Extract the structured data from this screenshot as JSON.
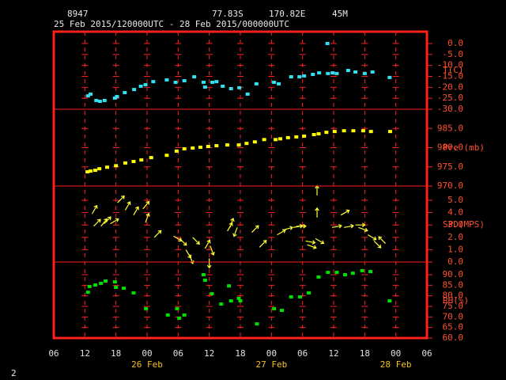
{
  "header": {
    "station": "8947",
    "lat": "77.83S",
    "lon": "170.82E",
    "elev": "45M",
    "period": "25 Feb 2015/120000UTC - 28 Feb 2015/000000UTC",
    "page": "2"
  },
  "x_axis": {
    "xlim": [
      0,
      72
    ],
    "xticks": [
      {
        "value": 0,
        "label": "06"
      },
      {
        "value": 6,
        "label": "12"
      },
      {
        "value": 12,
        "label": "18"
      },
      {
        "value": 18,
        "label": "00"
      },
      {
        "value": 24,
        "label": "06"
      },
      {
        "value": 30,
        "label": "12"
      },
      {
        "value": 36,
        "label": "18"
      },
      {
        "value": 42,
        "label": "00"
      },
      {
        "value": 48,
        "label": "06"
      },
      {
        "value": 54,
        "label": "12"
      },
      {
        "value": 60,
        "label": "18"
      },
      {
        "value": 66,
        "label": "00"
      },
      {
        "value": 72,
        "label": "06"
      }
    ],
    "date_ticks": [
      {
        "value": 18,
        "label": "26 Feb"
      },
      {
        "value": 42,
        "label": "27 Feb"
      },
      {
        "value": 66,
        "label": "28 Feb"
      }
    ]
  },
  "chart_data": [
    {
      "type": "scatter",
      "label": "T(C)",
      "ylim": [
        -30,
        5.4
      ],
      "yticks": [
        {
          "value": 0,
          "label": "0.0"
        },
        {
          "value": -5,
          "label": "-5.0"
        },
        {
          "value": -10,
          "label": "-10.0"
        },
        {
          "value": -15,
          "label": "-15.0"
        },
        {
          "value": -20,
          "label": "-20.0"
        },
        {
          "value": -25,
          "label": "-25.0"
        },
        {
          "value": -30,
          "label": "-30.0"
        }
      ],
      "series": [
        {
          "color": "#33e0f0",
          "x": [
            6.6,
            7.1,
            8.2,
            8.9,
            9.8,
            11.8,
            12.2,
            13.7,
            15.5,
            16.8,
            17.7,
            19.2,
            21.8,
            23.5,
            25.2,
            27.1,
            28.9,
            29.2,
            30.6,
            31.4,
            32.6,
            34.2,
            35.8,
            37.4,
            39.1,
            42.5,
            43.4,
            45.8,
            47.4,
            48.3,
            50.0,
            51.2,
            52.8,
            52.9,
            53.8,
            54.6,
            56.8,
            58.2,
            60.0,
            61.5,
            64.8
          ],
          "values": [
            -23.9,
            -23.1,
            -26.0,
            -26.4,
            -26.0,
            -24.9,
            -24.2,
            -22.4,
            -21.0,
            -19.5,
            -18.8,
            -17.4,
            -16.6,
            -17.7,
            -17.0,
            -15.2,
            -17.7,
            -19.9,
            -17.7,
            -17.4,
            -19.5,
            -20.6,
            -20.2,
            -23.1,
            -18.4,
            -17.7,
            -18.4,
            -15.2,
            -15.2,
            -14.8,
            -14.1,
            -13.4,
            0.0,
            -13.7,
            -13.4,
            -13.7,
            -12.3,
            -13.0,
            -13.7,
            -13.0,
            -15.5
          ]
        }
      ]
    },
    {
      "type": "scatter",
      "label": "Pre (mb)",
      "ylim": [
        970,
        990
      ],
      "yticks": [
        {
          "value": 985,
          "label": "985.0"
        },
        {
          "value": 980,
          "label": "980.0"
        },
        {
          "value": 975,
          "label": "975.0"
        },
        {
          "value": 970,
          "label": "970.0"
        }
      ],
      "series": [
        {
          "color": "#ffff00",
          "x": [
            6.5,
            7.1,
            8.0,
            8.8,
            10.3,
            12.0,
            13.8,
            15.4,
            16.9,
            18.8,
            21.8,
            23.7,
            25.2,
            26.8,
            28.3,
            29.8,
            31.4,
            33.5,
            35.7,
            37.2,
            38.8,
            40.6,
            42.8,
            43.7,
            45.2,
            46.8,
            48.3,
            50.2,
            51.1,
            52.6,
            54.2,
            56.0,
            57.8,
            59.7,
            61.2,
            64.9
          ],
          "values": [
            973.7,
            973.9,
            974.1,
            974.5,
            974.9,
            975.3,
            976.0,
            976.4,
            976.8,
            977.4,
            978.0,
            979.1,
            979.7,
            979.9,
            980.1,
            980.3,
            980.5,
            980.7,
            980.7,
            981.1,
            981.5,
            982.1,
            982.1,
            982.3,
            982.6,
            982.8,
            983.0,
            983.4,
            983.6,
            984.0,
            984.2,
            984.4,
            984.4,
            984.4,
            984.2,
            984.2
          ]
        }
      ]
    },
    {
      "type": "vector",
      "label": "SPD(MPS)",
      "ylim": [
        0,
        6.15
      ],
      "yticks": [
        {
          "value": 5,
          "label": "5.0"
        },
        {
          "value": 4,
          "label": "4.0"
        },
        {
          "value": 3,
          "label": "3.0"
        },
        {
          "value": 2,
          "label": "2.0"
        },
        {
          "value": 1,
          "label": "1.0"
        },
        {
          "value": 0,
          "label": "0.0"
        }
      ],
      "series": [
        {
          "color": "#ffff33",
          "x": [
            7.4,
            7.7,
            9.1,
            9.7,
            10.9,
            12.3,
            13.8,
            15.4,
            17.2,
            17.7,
            19.4,
            23.1,
            24.3,
            25.5,
            26.2,
            26.8,
            29.2,
            30.0,
            30.2,
            33.5,
            34.0,
            35.4,
            38.2,
            39.7,
            43.1,
            44.3,
            46.2,
            46.8,
            48.6,
            48.9,
            50.8,
            50.8,
            50.5,
            53.7,
            55.4,
            56.0,
            58.2,
            58.8,
            60.6,
            61.8,
            64.0
          ],
          "values": [
            3.9,
            2.9,
            2.9,
            3.1,
            3.1,
            4.8,
            4.2,
            3.8,
            4.3,
            3.2,
            2.0,
            2.1,
            1.9,
            1.0,
            0.6,
            2.0,
            1.1,
            0.3,
            1.3,
            2.5,
            2.8,
            2.8,
            2.4,
            1.2,
            2.2,
            2.6,
            2.8,
            2.9,
            1.7,
            1.4,
            5.4,
            3.6,
            1.9,
            2.8,
            3.8,
            2.8,
            3.0,
            2.8,
            2.2,
            1.7,
            1.5
          ],
          "directions": [
            30,
            45,
            40,
            45,
            60,
            45,
            30,
            30,
            40,
            20,
            45,
            120,
            135,
            150,
            160,
            135,
            30,
            180,
            160,
            30,
            20,
            200,
            45,
            45,
            60,
            75,
            80,
            90,
            100,
            110,
            0,
            0,
            120,
            80,
            60,
            80,
            90,
            110,
            120,
            135,
            315
          ]
        }
      ]
    },
    {
      "type": "scatter",
      "label": "RH(%)",
      "ylim": [
        60,
        96
      ],
      "yticks": [
        {
          "value": 90,
          "label": "90.0"
        },
        {
          "value": 85,
          "label": "85.0"
        },
        {
          "value": 80,
          "label": "80.0"
        },
        {
          "value": 75,
          "label": "75.0"
        },
        {
          "value": 70,
          "label": "70.0"
        },
        {
          "value": 65,
          "label": "65.0"
        },
        {
          "value": 60,
          "label": "60.0"
        }
      ],
      "series": [
        {
          "color": "#00e000",
          "x": [
            6.6,
            6.9,
            8.0,
            9.1,
            10.0,
            11.8,
            12.0,
            13.5,
            15.4,
            17.8,
            22.0,
            23.8,
            24.2,
            25.2,
            28.9,
            29.2,
            30.5,
            32.3,
            33.8,
            34.2,
            35.7,
            36.0,
            39.2,
            42.5,
            44.0,
            45.8,
            47.5,
            49.2,
            51.1,
            52.9,
            54.6,
            56.2,
            57.7,
            59.5,
            61.1,
            64.8
          ],
          "values": [
            81.7,
            84.4,
            85.1,
            85.9,
            87.0,
            86.6,
            84.0,
            83.6,
            81.4,
            73.9,
            70.9,
            73.9,
            69.4,
            70.9,
            90.0,
            87.4,
            81.0,
            76.1,
            84.7,
            77.6,
            78.8,
            77.6,
            66.7,
            73.9,
            73.1,
            79.5,
            79.5,
            81.4,
            88.9,
            91.1,
            91.1,
            90.0,
            90.7,
            91.9,
            91.5,
            77.6
          ]
        }
      ]
    }
  ]
}
